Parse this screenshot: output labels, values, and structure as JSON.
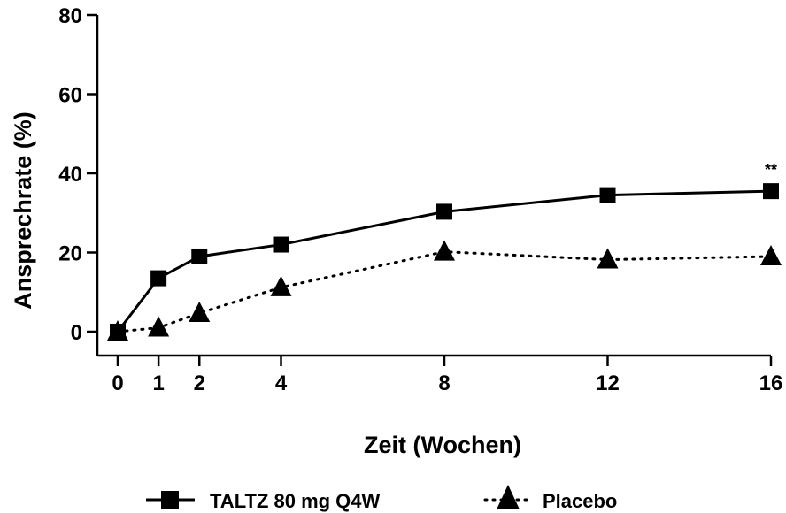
{
  "chart_data": {
    "type": "line",
    "xlabel": "Zeit (Wochen)",
    "ylabel": "Ansprechrate (%)",
    "ylim": [
      0,
      80
    ],
    "xlim": [
      0,
      16
    ],
    "x_ticks": [
      0,
      1,
      2,
      4,
      8,
      12,
      16
    ],
    "y_ticks": [
      0,
      20,
      40,
      60,
      80
    ],
    "grid": false,
    "legend_position": "bottom",
    "series": [
      {
        "name": "TALTZ 80 mg Q4W",
        "marker": "square",
        "line_style": "solid",
        "color": "#000000",
        "x": [
          0,
          1,
          2,
          4,
          8,
          12,
          16
        ],
        "values": [
          0,
          13.5,
          19,
          22,
          30.3,
          34.5,
          35.5
        ]
      },
      {
        "name": "Placebo",
        "marker": "triangle",
        "line_style": "dotted",
        "color": "#000000",
        "x": [
          0,
          1,
          2,
          4,
          8,
          12,
          16
        ],
        "values": [
          0,
          1,
          4.7,
          11.2,
          20.2,
          18.2,
          19
        ]
      }
    ],
    "annotations": [
      {
        "text": "**",
        "x": 16,
        "y": 35.5
      }
    ]
  }
}
